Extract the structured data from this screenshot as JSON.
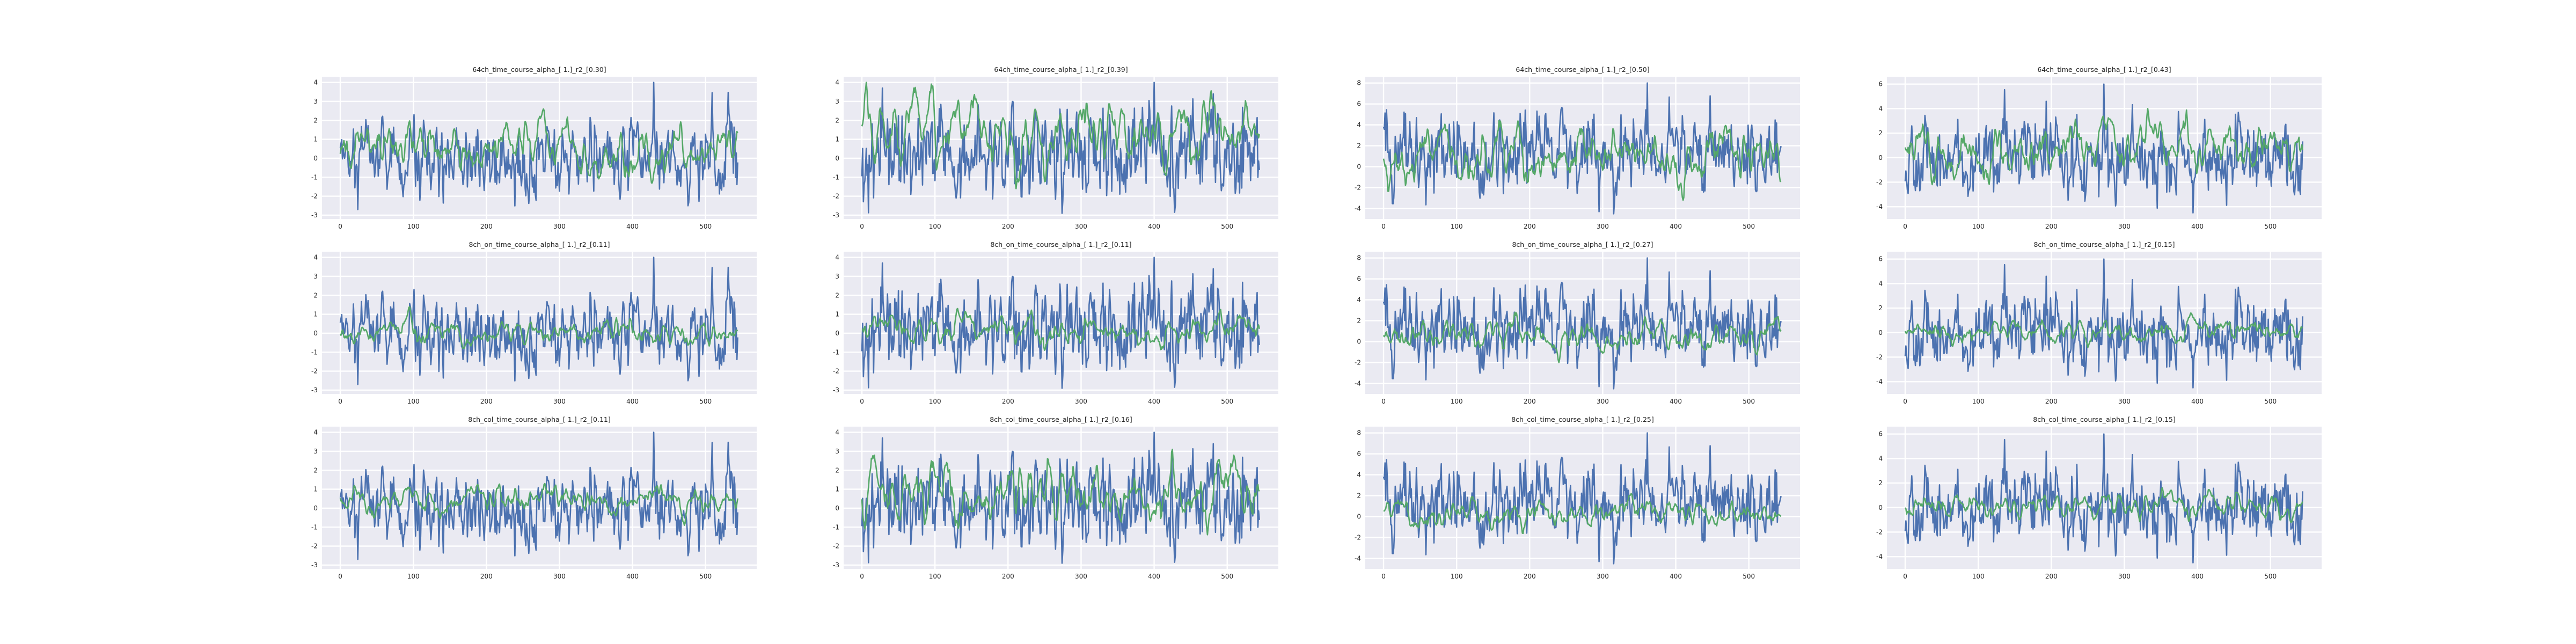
{
  "chart_data": {
    "type": "line",
    "colors": {
      "series_a": "#4c72b0",
      "series_b": "#55a868",
      "axes_bg": "#eaeaf2",
      "grid": "#ffffff",
      "text": "#262626"
    },
    "grid": true,
    "legend": "none",
    "n_points": 545,
    "panels": [
      {
        "title": "64ch_time_course_alpha_[ 1.]_r2_[0.30]",
        "xticks": [
          0,
          100,
          200,
          300,
          400,
          500
        ],
        "xlim": [
          -25,
          570
        ],
        "yticks": [
          -3,
          -2,
          -1,
          0,
          1,
          2,
          3,
          4
        ],
        "ylim": [
          -3.2,
          4.3
        ],
        "series_a": {
          "min": -2.7,
          "max": 4.0,
          "seed": 11
        },
        "series_b": {
          "min": -1.3,
          "max": 2.6,
          "seed": 101
        }
      },
      {
        "title": "64ch_time_course_alpha_[ 1.]_r2_[0.39]",
        "xticks": [
          0,
          100,
          200,
          300,
          400,
          500
        ],
        "xlim": [
          -25,
          570
        ],
        "yticks": [
          -3,
          -2,
          -1,
          0,
          1,
          2,
          3,
          4
        ],
        "ylim": [
          -3.2,
          4.3
        ],
        "series_a": {
          "min": -2.9,
          "max": 4.0,
          "seed": 12
        },
        "series_b": {
          "min": -1.6,
          "max": 4.0,
          "seed": 102
        }
      },
      {
        "title": "64ch_time_course_alpha_[ 1.]_r2_[0.50]",
        "xticks": [
          0,
          100,
          200,
          300,
          400,
          500
        ],
        "xlim": [
          -25,
          570
        ],
        "yticks": [
          -4,
          -2,
          0,
          2,
          4,
          6,
          8
        ],
        "ylim": [
          -5.0,
          8.6
        ],
        "series_a": {
          "min": -4.5,
          "max": 8.0,
          "seed": 13
        },
        "series_b": {
          "min": -3.2,
          "max": 4.4,
          "seed": 103
        }
      },
      {
        "title": "64ch_time_course_alpha_[ 1.]_r2_[0.43]",
        "xticks": [
          0,
          100,
          200,
          300,
          400,
          500
        ],
        "xlim": [
          -25,
          570
        ],
        "yticks": [
          -4,
          -2,
          0,
          2,
          4,
          6
        ],
        "ylim": [
          -5.0,
          6.6
        ],
        "series_a": {
          "min": -4.5,
          "max": 6.0,
          "seed": 14
        },
        "series_b": {
          "min": -2.2,
          "max": 4.0,
          "seed": 104
        }
      },
      {
        "title": "8ch_on_time_course_alpha_[ 1.]_r2_[0.11]",
        "xticks": [
          0,
          100,
          200,
          300,
          400,
          500
        ],
        "xlim": [
          -25,
          570
        ],
        "yticks": [
          -3,
          -2,
          -1,
          0,
          1,
          2,
          3,
          4
        ],
        "ylim": [
          -3.2,
          4.3
        ],
        "series_a": {
          "min": -2.7,
          "max": 4.0,
          "seed": 11
        },
        "series_b": {
          "min": -0.8,
          "max": 1.4,
          "seed": 201
        }
      },
      {
        "title": "8ch_on_time_course_alpha_[ 1.]_r2_[0.11]",
        "xticks": [
          0,
          100,
          200,
          300,
          400,
          500
        ],
        "xlim": [
          -25,
          570
        ],
        "yticks": [
          -3,
          -2,
          -1,
          0,
          1,
          2,
          3,
          4
        ],
        "ylim": [
          -3.2,
          4.3
        ],
        "series_a": {
          "min": -2.9,
          "max": 4.0,
          "seed": 12
        },
        "series_b": {
          "min": -0.9,
          "max": 1.3,
          "seed": 202
        }
      },
      {
        "title": "8ch_on_time_course_alpha_[ 1.]_r2_[0.27]",
        "xticks": [
          0,
          100,
          200,
          300,
          400,
          500
        ],
        "xlim": [
          -25,
          570
        ],
        "yticks": [
          -4,
          -2,
          0,
          2,
          4,
          6,
          8
        ],
        "ylim": [
          -5.0,
          8.6
        ],
        "series_a": {
          "min": -4.5,
          "max": 8.0,
          "seed": 13
        },
        "series_b": {
          "min": -2.0,
          "max": 2.8,
          "seed": 203
        }
      },
      {
        "title": "8ch_on_time_course_alpha_[ 1.]_r2_[0.15]",
        "xticks": [
          0,
          100,
          200,
          300,
          400,
          500
        ],
        "xlim": [
          -25,
          570
        ],
        "yticks": [
          -4,
          -2,
          0,
          2,
          4,
          6
        ],
        "ylim": [
          -5.0,
          6.6
        ],
        "series_a": {
          "min": -4.5,
          "max": 6.0,
          "seed": 14
        },
        "series_b": {
          "min": -1.2,
          "max": 1.6,
          "seed": 204
        }
      },
      {
        "title": "8ch_col_time_course_alpha_[ 1.]_r2_[0.11]",
        "xticks": [
          0,
          100,
          200,
          300,
          400,
          500
        ],
        "xlim": [
          -25,
          570
        ],
        "yticks": [
          -3,
          -2,
          -1,
          0,
          1,
          2,
          3,
          4
        ],
        "ylim": [
          -3.2,
          4.3
        ],
        "series_a": {
          "min": -2.7,
          "max": 4.0,
          "seed": 11
        },
        "series_b": {
          "min": -0.9,
          "max": 1.3,
          "seed": 301
        }
      },
      {
        "title": "8ch_col_time_course_alpha_[ 1.]_r2_[0.16]",
        "xticks": [
          0,
          100,
          200,
          300,
          400,
          500
        ],
        "xlim": [
          -25,
          570
        ],
        "yticks": [
          -3,
          -2,
          -1,
          0,
          1,
          2,
          3,
          4
        ],
        "ylim": [
          -3.2,
          4.3
        ],
        "series_a": {
          "min": -2.9,
          "max": 4.0,
          "seed": 12
        },
        "series_b": {
          "min": -1.4,
          "max": 3.1,
          "seed": 302
        }
      },
      {
        "title": "8ch_col_time_course_alpha_[ 1.]_r2_[0.25]",
        "xticks": [
          0,
          100,
          200,
          300,
          400,
          500
        ],
        "xlim": [
          -25,
          570
        ],
        "yticks": [
          -4,
          -2,
          0,
          2,
          4,
          6,
          8
        ],
        "ylim": [
          -5.0,
          8.6
        ],
        "series_a": {
          "min": -4.5,
          "max": 8.0,
          "seed": 13
        },
        "series_b": {
          "min": -1.6,
          "max": 2.2,
          "seed": 303
        }
      },
      {
        "title": "8ch_col_time_course_alpha_[ 1.]_r2_[0.15]",
        "xticks": [
          0,
          100,
          200,
          300,
          400,
          500
        ],
        "xlim": [
          -25,
          570
        ],
        "yticks": [
          -4,
          -2,
          0,
          2,
          4,
          6
        ],
        "ylim": [
          -5.0,
          6.6
        ],
        "series_a": {
          "min": -4.5,
          "max": 6.0,
          "seed": 14
        },
        "series_b": {
          "min": -1.2,
          "max": 1.6,
          "seed": 304
        }
      }
    ]
  }
}
